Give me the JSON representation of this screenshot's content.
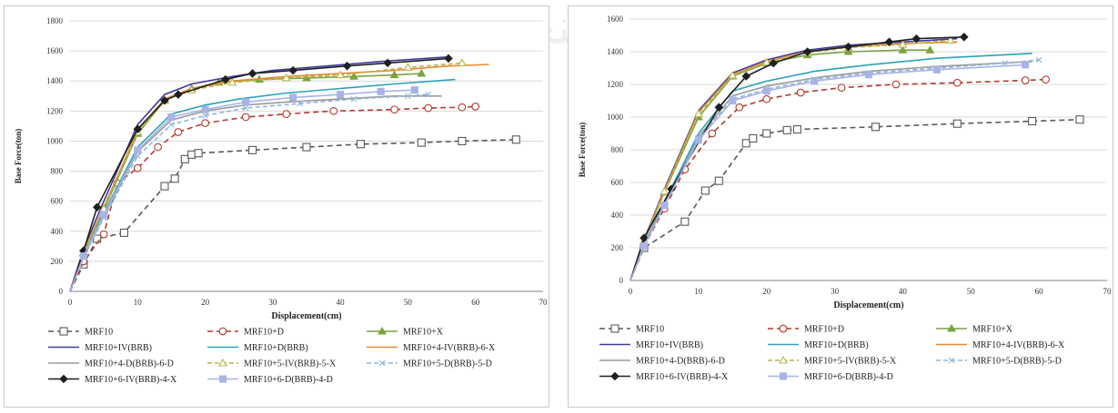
{
  "colors": {
    "grid": "#d9d9d9",
    "axis": "#808080",
    "background": "#ffffff"
  },
  "series_styles": [
    {
      "name": "MRF10",
      "color": "#595959",
      "dash": "6,4",
      "marker": "square"
    },
    {
      "name": "MRF10+D",
      "color": "#b03a2e",
      "dash": "6,4",
      "marker": "circle"
    },
    {
      "name": "MRF10+X",
      "color": "#7aa340",
      "dash": "",
      "marker": "triangle"
    },
    {
      "name": "MRF10+IV(BRB)",
      "color": "#3e3a9e",
      "dash": "",
      "marker": "none"
    },
    {
      "name": "MRF10+D(BRB)",
      "color": "#2aa3b5",
      "dash": "",
      "marker": "none"
    },
    {
      "name": "MRF10+4-IV(BRB)-6-X",
      "color": "#e8892f",
      "dash": "",
      "marker": "none"
    },
    {
      "name": "MRF10+4-D(BRB)-6-D",
      "color": "#9a9a9a",
      "dash": "",
      "marker": "none"
    },
    {
      "name": "MRF10+5-IV(BRB)-5-X",
      "color": "#b5b546",
      "dash": "5,3",
      "marker": "triangle-open"
    },
    {
      "name": "MRF10+5-D(BRB)-5-D",
      "color": "#8fb7d8",
      "dash": "5,3",
      "marker": "x"
    },
    {
      "name": "MRF10+6-IV(BRB)-4-X",
      "color": "#1f1f1f",
      "dash": "",
      "marker": "diamond"
    },
    {
      "name": "MRF10+6-D(BRB)-4-D",
      "color": "#a7b4e6",
      "dash": "",
      "marker": "square-filled"
    }
  ],
  "chart_data": [
    {
      "type": "line",
      "xlabel": "Displacement(cm)",
      "ylabel": "Base Force(ton)",
      "xlim": [
        0,
        70
      ],
      "ylim": [
        0,
        1800
      ],
      "xticks": [
        0,
        10,
        20,
        30,
        40,
        50,
        60,
        70
      ],
      "yticks": [
        0,
        200,
        400,
        600,
        800,
        1000,
        1200,
        1400,
        1600,
        1800
      ],
      "grid": true,
      "legend_position": "bottom",
      "series": [
        {
          "name": "MRF10",
          "x": [
            0,
            2,
            4,
            8,
            14,
            15.5,
            17,
            18,
            19,
            27,
            35,
            43,
            52,
            58,
            66
          ],
          "y": [
            0,
            180,
            350,
            390,
            700,
            750,
            880,
            910,
            920,
            940,
            960,
            980,
            990,
            1000,
            1010
          ]
        },
        {
          "name": "MRF10+D",
          "x": [
            0,
            2,
            5,
            7,
            10,
            13,
            16,
            20,
            26,
            32,
            39,
            48,
            53,
            58,
            60
          ],
          "y": [
            0,
            200,
            380,
            720,
            820,
            960,
            1060,
            1120,
            1160,
            1180,
            1200,
            1210,
            1220,
            1225,
            1230
          ]
        },
        {
          "name": "MRF10+X",
          "x": [
            0,
            2,
            5,
            10,
            14,
            18,
            22,
            28,
            35,
            42,
            48,
            52
          ],
          "y": [
            0,
            260,
            540,
            1050,
            1270,
            1350,
            1390,
            1410,
            1420,
            1430,
            1440,
            1450
          ]
        },
        {
          "name": "MRF10+IV(BRB)",
          "x": [
            0,
            2,
            5,
            10,
            14,
            18,
            24,
            30,
            38,
            46,
            56
          ],
          "y": [
            0,
            280,
            600,
            1110,
            1310,
            1380,
            1430,
            1470,
            1500,
            1530,
            1560
          ]
        },
        {
          "name": "MRF10+D(BRB)",
          "x": [
            0,
            2,
            5,
            10,
            15,
            20,
            25,
            32,
            40,
            48,
            57
          ],
          "y": [
            0,
            240,
            520,
            960,
            1180,
            1240,
            1280,
            1320,
            1350,
            1380,
            1410
          ]
        },
        {
          "name": "MRF10+4-IV(BRB)-6-X",
          "x": [
            0,
            2,
            5,
            10,
            14,
            18,
            24,
            32,
            40,
            48,
            56,
            62
          ],
          "y": [
            0,
            260,
            560,
            1070,
            1280,
            1350,
            1400,
            1430,
            1450,
            1470,
            1500,
            1510
          ]
        },
        {
          "name": "MRF10+4-D(BRB)-6-D",
          "x": [
            0,
            2,
            5,
            10,
            15,
            20,
            26,
            32,
            40,
            48,
            55
          ],
          "y": [
            0,
            230,
            500,
            930,
            1140,
            1200,
            1240,
            1260,
            1280,
            1300,
            1300
          ]
        },
        {
          "name": "MRF10+5-IV(BRB)-5-X",
          "x": [
            0,
            2,
            5,
            10,
            14,
            18,
            24,
            32,
            40,
            50,
            58
          ],
          "y": [
            0,
            255,
            550,
            1060,
            1270,
            1340,
            1390,
            1420,
            1440,
            1490,
            1520
          ]
        },
        {
          "name": "MRF10+5-D(BRB)-5-D",
          "x": [
            0,
            2,
            5,
            10,
            15,
            20,
            26,
            34,
            42,
            50,
            53
          ],
          "y": [
            0,
            225,
            490,
            900,
            1110,
            1170,
            1220,
            1250,
            1280,
            1300,
            1310
          ]
        },
        {
          "name": "MRF10+6-IV(BRB)-4-X",
          "x": [
            0,
            2,
            4,
            10,
            14,
            16,
            23,
            27,
            33,
            41,
            47,
            56
          ],
          "y": [
            0,
            270,
            560,
            1080,
            1270,
            1310,
            1410,
            1450,
            1470,
            1500,
            1520,
            1550
          ]
        },
        {
          "name": "MRF10+6-D(BRB)-4-D",
          "x": [
            0,
            2,
            5,
            10,
            15,
            20,
            26,
            33,
            40,
            46,
            51
          ],
          "y": [
            0,
            235,
            510,
            940,
            1160,
            1210,
            1260,
            1290,
            1310,
            1330,
            1340
          ]
        }
      ]
    },
    {
      "type": "line",
      "xlabel": "Displacement(cm)",
      "ylabel": "Base Force(ton)",
      "xlim": [
        0,
        70
      ],
      "ylim": [
        0,
        1600
      ],
      "xticks": [
        0,
        10,
        20,
        30,
        40,
        50,
        60,
        70
      ],
      "yticks": [
        0,
        200,
        400,
        600,
        800,
        1000,
        1200,
        1400,
        1600
      ],
      "grid": true,
      "legend_position": "bottom",
      "series": [
        {
          "name": "MRF10",
          "x": [
            0,
            2,
            8,
            11,
            13,
            17,
            18,
            20,
            23,
            24.5,
            36,
            48,
            59,
            66
          ],
          "y": [
            0,
            200,
            360,
            550,
            610,
            840,
            870,
            900,
            920,
            925,
            940,
            960,
            975,
            985
          ]
        },
        {
          "name": "MRF10+D",
          "x": [
            0,
            2,
            5,
            8,
            12,
            16,
            20,
            25,
            31,
            39,
            48,
            58,
            61
          ],
          "y": [
            0,
            210,
            440,
            680,
            900,
            1060,
            1110,
            1150,
            1180,
            1200,
            1210,
            1225,
            1230
          ]
        },
        {
          "name": "MRF10+X",
          "x": [
            0,
            2,
            5,
            10,
            15,
            20,
            26,
            32,
            40,
            44
          ],
          "y": [
            0,
            240,
            540,
            1000,
            1250,
            1330,
            1380,
            1400,
            1410,
            1410
          ]
        },
        {
          "name": "MRF10+IV(BRB)",
          "x": [
            0,
            2,
            5,
            10,
            15,
            20,
            26,
            32,
            40,
            48
          ],
          "y": [
            0,
            250,
            560,
            1040,
            1270,
            1350,
            1410,
            1440,
            1460,
            1480
          ]
        },
        {
          "name": "MRF10+D(BRB)",
          "x": [
            0,
            2,
            5,
            10,
            15,
            20,
            27,
            35,
            45,
            59
          ],
          "y": [
            0,
            220,
            480,
            900,
            1160,
            1220,
            1280,
            1320,
            1360,
            1390
          ]
        },
        {
          "name": "MRF10+4-IV(BRB)-6-X",
          "x": [
            0,
            2,
            5,
            10,
            15,
            20,
            26,
            32,
            40,
            48
          ],
          "y": [
            0,
            245,
            550,
            1030,
            1260,
            1340,
            1400,
            1430,
            1450,
            1460
          ]
        },
        {
          "name": "MRF10+4-D(BRB)-6-D",
          "x": [
            0,
            2,
            5,
            10,
            15,
            20,
            27,
            35,
            45,
            59
          ],
          "y": [
            0,
            215,
            470,
            880,
            1130,
            1190,
            1240,
            1280,
            1310,
            1340
          ]
        },
        {
          "name": "MRF10+5-IV(BRB)-5-X",
          "x": [
            0,
            2,
            5,
            10,
            15,
            20,
            26,
            32,
            40,
            47
          ],
          "y": [
            0,
            240,
            545,
            1020,
            1255,
            1335,
            1395,
            1425,
            1445,
            1470
          ]
        },
        {
          "name": "MRF10+5-D(BRB)-5-D",
          "x": [
            0,
            2,
            5,
            10,
            15,
            20,
            27,
            35,
            45,
            55,
            60
          ],
          "y": [
            0,
            212,
            465,
            870,
            1110,
            1170,
            1230,
            1270,
            1300,
            1330,
            1350
          ]
        },
        {
          "name": "MRF10+6-IV(BRB)-4-X",
          "x": [
            0,
            2,
            6,
            13,
            17,
            21,
            26,
            32,
            38,
            42,
            49
          ],
          "y": [
            0,
            260,
            560,
            1060,
            1250,
            1330,
            1400,
            1430,
            1460,
            1480,
            1490
          ]
        },
        {
          "name": "MRF10+6-D(BRB)-4-D",
          "x": [
            0,
            2,
            5,
            10,
            15,
            20,
            27,
            35,
            45,
            58
          ],
          "y": [
            0,
            210,
            460,
            860,
            1100,
            1160,
            1220,
            1260,
            1290,
            1320
          ]
        }
      ]
    }
  ]
}
